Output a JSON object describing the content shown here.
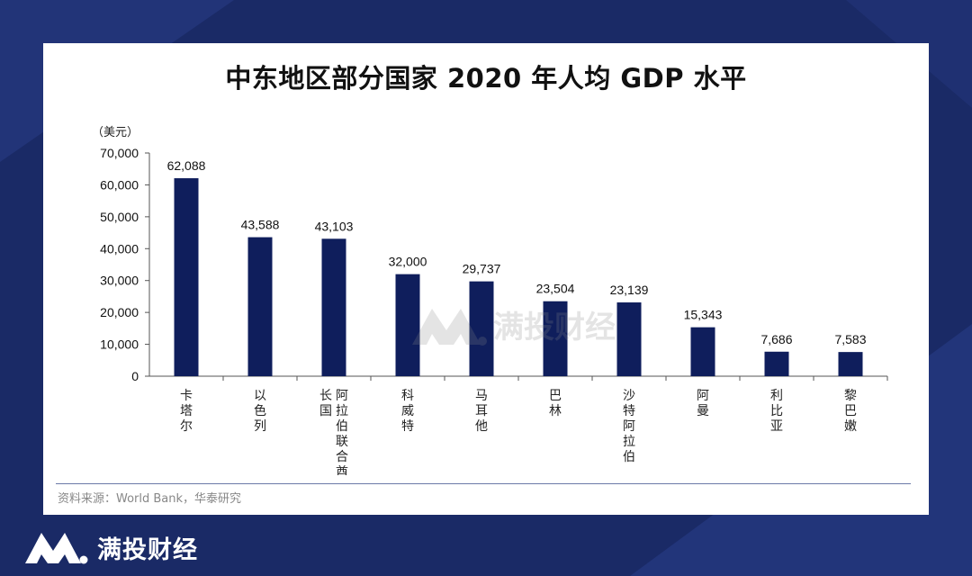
{
  "brand": {
    "name": "满投财经",
    "logo_icon": "mountain-m-logo-icon"
  },
  "colors": {
    "background": "#1a2a66",
    "bar": "#0f1e5c",
    "card": "#ffffff"
  },
  "chart_data": {
    "type": "bar",
    "title": "中东地区部分国家 2020 年人均 GDP 水平",
    "unit_label": "（美元）",
    "categories": [
      "卡塔尔",
      "以色列",
      "阿拉伯联合酋长国",
      "科威特",
      "马耳他",
      "巴林",
      "沙特阿拉伯",
      "阿曼",
      "利比亚",
      "黎巴嫩"
    ],
    "category_label_lines": [
      [
        "卡塔尔"
      ],
      [
        "以色列"
      ],
      [
        "阿拉伯联合酋",
        "长国"
      ],
      [
        "科威特"
      ],
      [
        "马耳他"
      ],
      [
        "巴林"
      ],
      [
        "沙特阿拉伯"
      ],
      [
        "阿曼"
      ],
      [
        "利比亚"
      ],
      [
        "黎巴嫩"
      ]
    ],
    "values": [
      62088,
      43588,
      43103,
      32000,
      29737,
      23504,
      23139,
      15343,
      7686,
      7583
    ],
    "value_labels": [
      "62,088",
      "43,588",
      "43,103",
      "32,000",
      "29,737",
      "23,504",
      "23,139",
      "15,343",
      "7,686",
      "7,583"
    ],
    "ylim": [
      0,
      70000
    ],
    "yticks": [
      0,
      10000,
      20000,
      30000,
      40000,
      50000,
      60000,
      70000
    ],
    "ytick_labels": [
      "0",
      "10,000",
      "20,000",
      "30,000",
      "40,000",
      "50,000",
      "60,000",
      "70,000"
    ],
    "xlabel": "",
    "ylabel": "",
    "grid": false,
    "source": "资料来源：World Bank，华泰研究"
  },
  "watermark": "满投财经"
}
